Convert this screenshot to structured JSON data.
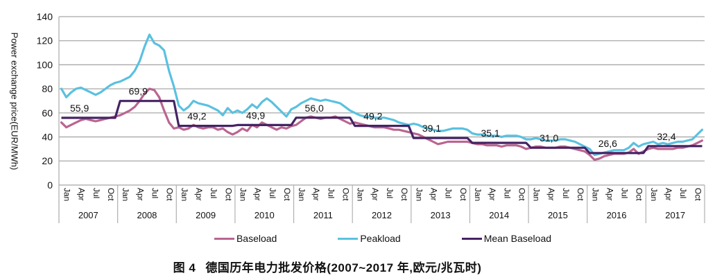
{
  "chart_data": {
    "type": "line",
    "ylabel": "Power exchange price(EUR/MWh)",
    "ylim": [
      0,
      140
    ],
    "y_ticks": [
      0,
      20,
      40,
      60,
      80,
      100,
      120,
      140
    ],
    "grid": "horizontal",
    "legend_position": "bottom",
    "x_unit": "month",
    "month_tick_labels": [
      "Jan",
      "Apr",
      "Jul",
      "Oct"
    ],
    "month_tick_positions": [
      0,
      3,
      6,
      9
    ],
    "years": [
      "2007",
      "2008",
      "2009",
      "2010",
      "2011",
      "2012",
      "2013",
      "2014",
      "2015",
      "2016",
      "2017"
    ],
    "colors": {
      "baseload": "#ba6590",
      "peakload": "#5ac1e0",
      "mean_baseload": "#452364",
      "gridline": "#a8a8a8",
      "axis": "#b0b0b0",
      "text": "#111111"
    },
    "series": [
      {
        "name": "Baseload",
        "style": "line",
        "color": "#ba6590",
        "monthly_values": [
          52,
          48,
          50,
          52,
          54,
          55,
          54,
          53,
          54,
          55,
          56,
          57,
          58,
          60,
          62,
          65,
          70,
          76,
          80,
          79,
          73,
          62,
          52,
          47,
          48,
          46,
          47,
          50,
          48,
          47,
          48,
          48,
          46,
          47,
          44,
          42,
          44,
          47,
          45,
          50,
          48,
          52,
          50,
          48,
          46,
          48,
          47,
          49,
          50,
          53,
          56,
          57,
          56,
          55,
          56,
          56,
          57,
          55,
          53,
          51,
          52,
          51,
          50,
          49,
          48,
          48,
          48,
          47,
          46,
          46,
          45,
          44,
          43,
          42,
          40,
          38,
          36,
          34,
          35,
          36,
          36,
          36,
          36,
          36,
          35,
          34,
          34,
          33,
          33,
          33,
          32,
          33,
          33,
          33,
          32,
          30,
          31,
          32,
          32,
          31,
          31,
          31,
          32,
          32,
          31,
          30,
          29,
          28,
          25,
          21,
          22,
          24,
          25,
          26,
          26,
          26,
          27,
          30,
          26,
          28,
          30,
          31,
          30,
          30,
          30,
          30,
          31,
          31,
          32,
          33,
          35,
          37
        ]
      },
      {
        "name": "Peakload",
        "style": "line",
        "color": "#5ac1e0",
        "monthly_values": [
          80,
          73,
          77,
          80,
          81,
          79,
          77,
          75,
          77,
          80,
          83,
          85,
          86,
          88,
          90,
          95,
          103,
          115,
          125,
          118,
          116,
          112,
          95,
          82,
          66,
          62,
          65,
          70,
          68,
          67,
          66,
          64,
          62,
          58,
          64,
          60,
          62,
          60,
          63,
          67,
          64,
          69,
          72,
          69,
          65,
          61,
          57,
          63,
          65,
          68,
          70,
          72,
          71,
          70,
          71,
          70,
          69,
          68,
          65,
          62,
          60,
          58,
          57,
          57,
          56,
          56,
          56,
          55,
          54,
          52,
          51,
          50,
          51,
          50,
          48,
          47,
          46,
          45,
          45,
          46,
          47,
          47,
          47,
          46,
          43,
          42,
          42,
          41,
          41,
          41,
          40,
          41,
          41,
          41,
          40,
          38,
          38,
          39,
          38,
          37,
          37,
          37,
          38,
          38,
          37,
          36,
          34,
          32,
          30,
          25,
          26,
          27,
          28,
          29,
          29,
          29,
          31,
          35,
          32,
          34,
          35,
          36,
          34,
          35,
          34,
          35,
          36,
          36,
          37,
          38,
          42,
          46
        ]
      },
      {
        "name": "Mean Baseload",
        "style": "step-per-year",
        "color": "#452364",
        "yearly_means": [
          55.9,
          69.9,
          49.2,
          49.9,
          56.0,
          49.2,
          39.1,
          35.1,
          31.0,
          26.6,
          32.4
        ],
        "value_labels": [
          "55,9",
          "69,9",
          "49,2",
          "49,9",
          "56,0",
          "49,2",
          "39,1",
          "35,1",
          "31,0",
          "26,6",
          "32,4"
        ]
      }
    ]
  },
  "caption": {
    "figure_label": "图 4",
    "text": "德国历年电力批发价格(2007~2017 年,欧元/兆瓦时)"
  }
}
